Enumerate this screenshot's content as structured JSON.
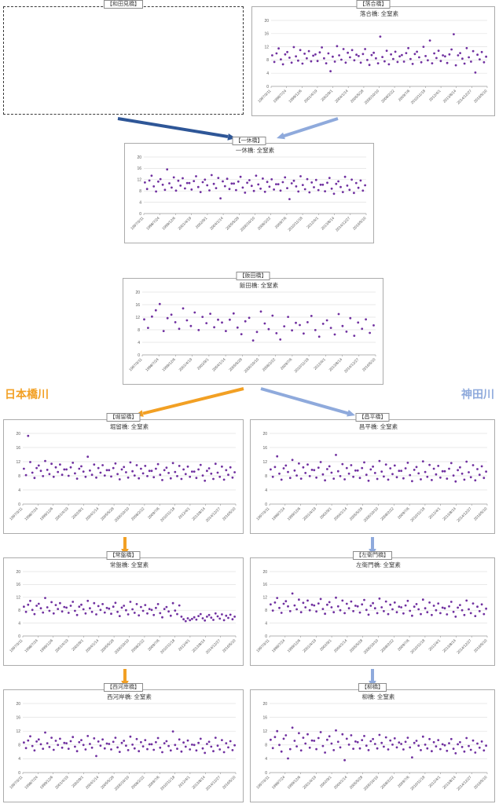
{
  "colors": {
    "dark_blue": "#2E5697",
    "light_blue": "#8FAADC",
    "orange": "#F2A024",
    "point_purple": "#7030A0"
  },
  "rivers": {
    "left": {
      "name": "日本橋川"
    },
    "right": {
      "name": "神田川"
    }
  },
  "labels": {
    "wadami": "【和田見橋】",
    "ochiai": "【落合橋】",
    "ikkyu": "【一休橋】",
    "iida": "【飯田橋】",
    "horidome": "【堀留橋】",
    "shohei": "【昌平橋】",
    "tokiwa": "【常盤橋】",
    "saemon": "【左衛門橋】",
    "nishigashi": "【西河岸橋】",
    "yanagi": "【柳橋】"
  },
  "chart_data": {
    "type": "scatter",
    "ylabel": "",
    "xlabel": "",
    "ylim": [
      0,
      20
    ],
    "yticks": [
      0,
      4,
      8,
      12,
      16,
      20
    ],
    "grid": true,
    "legend": false,
    "point_color": "#7030A0",
    "x_tick_labels": [
      "1997/3/11",
      "1998/7/24",
      "1999/12/6",
      "2001/4/19",
      "2002/9/1",
      "2004/1/14",
      "2005/5/28",
      "2006/10/10",
      "2008/2/22",
      "2009/7/6",
      "2010/11/18",
      "2012/4/1",
      "2013/8/14",
      "2014/12/27",
      "2016/5/10"
    ],
    "charts": [
      {
        "id": "ochiai",
        "title": "落合橋: 全窒素",
        "values": [
          9.4,
          7.4,
          10,
          11.5,
          8.2,
          6.7,
          9.7,
          10.4,
          8.7,
          7.2,
          11.9,
          9.1,
          7.8,
          11,
          6.9,
          9.9,
          8.5,
          10.7,
          7.6,
          9.3,
          9.7,
          7.7,
          10.3,
          11.8,
          8.5,
          7,
          10,
          4.6,
          9,
          7.5,
          12.2,
          9.4,
          8.1,
          11.3,
          7.2,
          10.2,
          8.8,
          11,
          7.9,
          9.6,
          9.2,
          7.2,
          9.8,
          11.3,
          8,
          6.5,
          9.5,
          10.2,
          8.5,
          7,
          15.1,
          8.9,
          7.6,
          10.8,
          6.7,
          9.7,
          8.3,
          10.5,
          7.4,
          9.1,
          9.5,
          7.5,
          10.1,
          11.6,
          8.3,
          6.8,
          9.8,
          10.5,
          8.8,
          7.3,
          12,
          9.2,
          7.9,
          13.9,
          7,
          10,
          8.6,
          10.8,
          7.7,
          9.4,
          9.1,
          7.1,
          9.7,
          11.2,
          15.8,
          6.4,
          9.4,
          10.1,
          8.4,
          6.9,
          11.6,
          8.8,
          7.5,
          10.7,
          4.2,
          9.6,
          8.2,
          10.4,
          7.3,
          9
        ]
      },
      {
        "id": "ikkyu",
        "title": "一休橋: 全窒素",
        "values": [
          11,
          8.7,
          11.7,
          13.4,
          9.6,
          7.8,
          11.3,
          12.2,
          10.2,
          8.4,
          15.6,
          10.7,
          9.2,
          12.8,
          8.1,
          11.6,
          9.9,
          12.5,
          8.9,
          10.8,
          10.8,
          8.5,
          11.5,
          13.2,
          9.4,
          7.6,
          11.1,
          12,
          10,
          8.2,
          13.6,
          10.5,
          9,
          12.6,
          5.4,
          11.4,
          9.7,
          12.3,
          8.7,
          10.6,
          10.6,
          8.3,
          11.3,
          13,
          9.2,
          7.4,
          10.9,
          11.8,
          9.8,
          8,
          13.4,
          10.3,
          8.8,
          12.4,
          7.7,
          11.2,
          9.5,
          12.1,
          8.5,
          10.4,
          10.4,
          8.1,
          11.1,
          12.8,
          9,
          5.1,
          10.7,
          11.6,
          9.6,
          7.8,
          13.2,
          10.1,
          8.6,
          12.2,
          7.5,
          11,
          9.3,
          11.9,
          8.3,
          10.2,
          10.2,
          7.9,
          10.9,
          12.6,
          8.8,
          7,
          10.5,
          11.4,
          9.4,
          7.6,
          13,
          9.9,
          8.4,
          12,
          7.3,
          10.8,
          9.1,
          11.7,
          8.1,
          10
        ]
      },
      {
        "id": "iida",
        "title": "飯田橋: 全窒素",
        "values": [
          11.3,
          8.6,
          12.2,
          14.2,
          16.2,
          7.6,
          11.7,
          12.8,
          10.4,
          8.3,
          14.8,
          11,
          9.2,
          13.5,
          7.9,
          12.1,
          10.1,
          13.1,
          8.8,
          11.2,
          10.3,
          7.6,
          11.2,
          13.2,
          8.7,
          6.6,
          10.7,
          11.8,
          4.6,
          7.3,
          13.8,
          10,
          8.2,
          12.5,
          6.9,
          4.9,
          9.1,
          12.1,
          7.8,
          10.2,
          9.5,
          6.8,
          10.4,
          12.4,
          7.9,
          5.8,
          9.9,
          11,
          8.6,
          6.5,
          13,
          9.2,
          7.4,
          11.7,
          6.1,
          10.3,
          8.3,
          11.3,
          7,
          9.4
        ]
      },
      {
        "id": "horidome",
        "title": "堀留橋: 全窒素",
        "values": [
          10,
          8.2,
          19.3,
          11.9,
          8.9,
          7.4,
          10.2,
          10.9,
          9.4,
          7.9,
          12.2,
          9.7,
          8.5,
          11.4,
          7.7,
          10.4,
          9.1,
          11.2,
          8.3,
          9.8,
          9.8,
          8,
          10.4,
          11.7,
          8.7,
          7.2,
          10,
          10.7,
          9.2,
          7.7,
          13.4,
          9.5,
          8.3,
          11.2,
          7.5,
          10.2,
          8.9,
          11,
          8.1,
          9.6,
          9.6,
          7.8,
          10.2,
          11.5,
          8.5,
          7,
          9.8,
          10.5,
          9,
          7.5,
          11.8,
          9.3,
          8.1,
          11,
          7.3,
          10,
          8.7,
          10.8,
          7.9,
          9.4,
          9.4,
          7.6,
          10,
          11.3,
          8.3,
          6.8,
          9.6,
          10.3,
          8.8,
          7.3,
          11.6,
          9.1,
          7.9,
          10.8,
          7.1,
          9.8,
          8.5,
          10.6,
          7.7,
          9.2,
          9.2,
          7.4,
          9.8,
          11.1,
          8.1,
          6.6,
          9.4,
          10.1,
          8.6,
          7.1,
          11.4,
          8.9,
          7.7,
          10.6,
          6.9,
          9.6,
          8.3,
          10.4,
          7.5,
          9
        ]
      },
      {
        "id": "shohei",
        "title": "昌平橋: 全窒素",
        "values": [
          9.8,
          7.7,
          10.5,
          13.5,
          8.6,
          6.9,
          10.1,
          10.9,
          9.1,
          7.4,
          12.5,
          9.5,
          8.1,
          11.5,
          7.2,
          10.4,
          8.8,
          11.2,
          7.9,
          9.7,
          9.6,
          7.5,
          10.3,
          11.9,
          8.4,
          6.7,
          9.9,
          10.7,
          8.9,
          7.2,
          13.9,
          9.3,
          7.9,
          11.3,
          7,
          10.2,
          8.6,
          11,
          7.7,
          9.5,
          9.5,
          7.4,
          10.2,
          11.8,
          8.3,
          6.6,
          9.8,
          10.6,
          8.8,
          7.1,
          12.2,
          9.2,
          7.8,
          11.2,
          6.9,
          10.1,
          8.5,
          10.9,
          7.6,
          9.4,
          9.4,
          7.3,
          10.1,
          11.7,
          8.2,
          6.5,
          9.7,
          10.5,
          8.7,
          7,
          12.1,
          9.1,
          7.7,
          11.1,
          6.8,
          10,
          8.4,
          10.8,
          7.5,
          9.3,
          9.3,
          7.2,
          10,
          11.6,
          8.1,
          6.4,
          9.6,
          10.4,
          8.6,
          6.9,
          12,
          9,
          7.6,
          11,
          6.7,
          9.9,
          8.3,
          10.7,
          7.4,
          9.2
        ]
      },
      {
        "id": "tokiwa",
        "title": "常盤橋: 全窒素",
        "values": [
          9.1,
          7.5,
          9.7,
          10.9,
          8.1,
          6.8,
          9.4,
          10,
          8.6,
          7.3,
          11.8,
          8.9,
          7.8,
          10.5,
          7,
          9.6,
          8.4,
          10.2,
          7.6,
          9,
          8.8,
          7.2,
          9.4,
          10.6,
          7.8,
          6.5,
          9.1,
          9.7,
          8.3,
          7,
          10.9,
          8.6,
          7.5,
          10.2,
          6.7,
          9.3,
          8.1,
          9.9,
          7.3,
          8.7,
          8.5,
          6.9,
          9.1,
          10.3,
          7.5,
          6.2,
          8.8,
          9.4,
          8,
          6.7,
          10.6,
          8.3,
          7.2,
          9.9,
          6.4,
          9,
          7.8,
          9.6,
          7,
          8.4,
          8.1,
          6.5,
          8.7,
          9.9,
          7.1,
          5.8,
          8.4,
          9,
          7.6,
          6.3,
          10.2,
          7.9,
          6.8,
          9.5,
          6,
          5.2,
          4.6,
          5.5,
          4.9,
          5.3,
          5.8,
          5.1,
          6.2,
          6.8,
          5.5,
          4.8,
          6,
          6.5,
          5.7,
          5,
          7,
          6.1,
          5.4,
          6.7,
          4.9,
          6.3,
          5.6,
          6.6,
          5.2,
          6
        ]
      },
      {
        "id": "saemon",
        "title": "左衛門橋: 全窒素",
        "values": [
          9.8,
          7.9,
          10.4,
          11.8,
          8.7,
          7.2,
          10,
          10.8,
          9.2,
          7.7,
          13.2,
          9.5,
          8.3,
          11.3,
          7.4,
          10.3,
          8.9,
          11,
          8,
          9.7,
          9.5,
          7.6,
          10.1,
          11.5,
          8.4,
          6.9,
          9.7,
          10.5,
          8.9,
          7.4,
          11.9,
          9.2,
          8,
          11,
          7.1,
          10,
          8.6,
          10.7,
          7.7,
          9.4,
          9.2,
          7.3,
          9.8,
          11.2,
          8.1,
          6.6,
          9.4,
          10.2,
          8.6,
          7.1,
          11.6,
          8.9,
          7.7,
          10.7,
          6.8,
          9.7,
          8.3,
          10.4,
          7.4,
          9.1,
          8.9,
          7,
          9.5,
          10.9,
          7.8,
          6.3,
          9.1,
          9.9,
          8.3,
          6.8,
          11.3,
          8.6,
          7.4,
          10.4,
          6.5,
          9.4,
          8,
          10.1,
          7.1,
          8.8,
          8.6,
          6.7,
          9.2,
          10.6,
          7.5,
          6,
          8.8,
          9.6,
          8,
          6.5,
          11,
          8.3,
          7.1,
          10.1,
          6.2,
          9.1,
          7.7,
          9.8,
          6.8,
          8.5
        ]
      },
      {
        "id": "nishigashi",
        "title": "西河岸橋: 全窒素",
        "values": [
          8.7,
          7.1,
          9.3,
          10.5,
          7.7,
          6.4,
          9,
          9.6,
          8.2,
          6.9,
          11.6,
          8.5,
          7.4,
          10.1,
          6.6,
          9.2,
          8,
          9.8,
          7.2,
          8.6,
          8.5,
          6.9,
          9.1,
          10.3,
          7.5,
          6.2,
          8.8,
          9.4,
          8,
          6.7,
          10.6,
          8.3,
          7.2,
          9.9,
          4.8,
          9,
          7.8,
          9.6,
          7,
          8.4,
          8.3,
          6.7,
          8.9,
          10.1,
          7.3,
          6,
          8.6,
          9.2,
          7.8,
          6.5,
          10.4,
          8.1,
          7,
          9.7,
          6.2,
          8.8,
          7.6,
          9.4,
          6.8,
          8.2,
          8.2,
          6.6,
          8.8,
          10,
          7.2,
          5.9,
          8.5,
          9.1,
          7.7,
          6.4,
          11.9,
          8,
          6.9,
          9.6,
          6.1,
          8.7,
          7.5,
          9.3,
          6.7,
          8.1,
          8,
          6.4,
          8.6,
          9.8,
          7,
          5.7,
          8.3,
          8.9,
          7.5,
          6.2,
          10.1,
          7.8,
          6.7,
          9.4,
          5.9,
          8.5,
          7.3,
          9.1,
          6.5,
          7.9
        ]
      },
      {
        "id": "yanagi",
        "title": "柳橋: 全窒素",
        "values": [
          9.5,
          7.1,
          10.3,
          12,
          8,
          6.1,
          9.8,
          10.8,
          4.1,
          6.8,
          13,
          9.2,
          7.6,
          11.4,
          6.4,
          10.1,
          8.4,
          11.1,
          7.2,
          9.3,
          9.2,
          6.8,
          10,
          11.7,
          7.7,
          5.8,
          9.5,
          10.5,
          8.4,
          6.5,
          12.2,
          8.9,
          7.3,
          11.1,
          3.6,
          9.8,
          8.1,
          10.8,
          6.9,
          9,
          8.8,
          7,
          9.4,
          10.6,
          7.8,
          6.5,
          9.1,
          9.7,
          8.3,
          7,
          10.9,
          8.6,
          7.5,
          10.2,
          6.7,
          9.3,
          8.1,
          9.9,
          7.3,
          8.7,
          8.3,
          6.7,
          8.9,
          10.1,
          7.3,
          4.4,
          8.6,
          9.2,
          7.8,
          6.5,
          10.4,
          8.1,
          7,
          9.7,
          6.2,
          8.8,
          7.6,
          9.4,
          6.8,
          8.2,
          7.9,
          6.3,
          8.5,
          9.7,
          6.9,
          5.6,
          8.2,
          8.8,
          7.4,
          6.1,
          10,
          7.7,
          6.6,
          9.3,
          5.8,
          8.4,
          7.2,
          9,
          6.4,
          7.8
        ]
      }
    ]
  }
}
